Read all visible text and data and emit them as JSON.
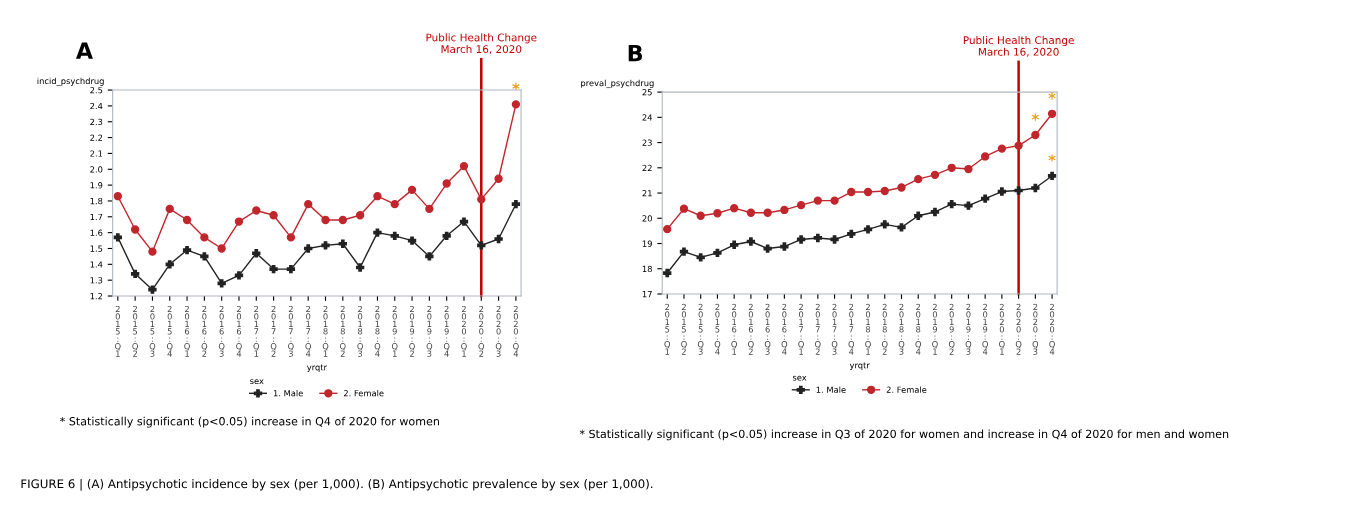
{
  "chart_data": [
    {
      "type": "line",
      "title": "A",
      "ylabel": "incid_psychdrug",
      "xlabel": "yrqtr",
      "legend_title": "sex",
      "legend": "bottom",
      "grid": false,
      "categories": [
        "2015:Q1",
        "2015:Q2",
        "2015:Q3",
        "2015:Q4",
        "2016:Q1",
        "2016:Q2",
        "2016:Q3",
        "2016:Q4",
        "2017:Q1",
        "2017:Q2",
        "2017:Q3",
        "2017:Q4",
        "2018:Q1",
        "2018:Q2",
        "2018:Q3",
        "2018:Q4",
        "2019:Q1",
        "2019:Q2",
        "2019:Q3",
        "2019:Q4",
        "2020:Q1",
        "2020:Q2",
        "2020:Q3",
        "2020:Q4"
      ],
      "ylim": [
        1.2,
        2.5
      ],
      "yticks": [
        {
          "value": 1.2,
          "label": "1.2"
        },
        {
          "value": 1.3,
          "label": "1.3"
        },
        {
          "value": 1.4,
          "label": "1.4"
        },
        {
          "value": 1.5,
          "label": "1.5"
        },
        {
          "value": 1.6,
          "label": "1.6"
        },
        {
          "value": 1.7,
          "label": "1.7"
        },
        {
          "value": 1.8,
          "label": "1.8"
        },
        {
          "value": 1.9,
          "label": "1.9"
        },
        {
          "value": 2.0,
          "label": "2.0"
        },
        {
          "value": 2.1,
          "label": "2.1"
        },
        {
          "value": 2.2,
          "label": "2.2"
        },
        {
          "value": 2.3,
          "label": "2.3"
        },
        {
          "value": 2.4,
          "label": "2.4"
        },
        {
          "value": 2.5,
          "label": "2.5"
        }
      ],
      "series": [
        {
          "name": "1. Male",
          "color": "#222222",
          "marker": "cross",
          "values": [
            1.57,
            1.34,
            1.24,
            1.4,
            1.49,
            1.45,
            1.28,
            1.33,
            1.47,
            1.37,
            1.37,
            1.5,
            1.52,
            1.53,
            1.38,
            1.6,
            1.58,
            1.55,
            1.45,
            1.58,
            1.67,
            1.52,
            1.56,
            1.78
          ]
        },
        {
          "name": "2. Female",
          "color": "#c0262c",
          "marker": "circle",
          "values": [
            1.83,
            1.62,
            1.48,
            1.75,
            1.68,
            1.57,
            1.5,
            1.67,
            1.74,
            1.71,
            1.57,
            1.78,
            1.68,
            1.68,
            1.71,
            1.83,
            1.78,
            1.87,
            1.75,
            1.91,
            2.02,
            1.81,
            1.94,
            2.41
          ]
        }
      ],
      "ref_lines": [
        {
          "axis": "x",
          "value": "2020:Q2",
          "label": "Public Health Change\nMarch 16, 2020",
          "color": "#c00000"
        }
      ],
      "annotations": [
        {
          "text": "*",
          "x": "2020:Q4",
          "y": 2.41
        },
        "* Statistically significant (p<0.05) increase in Q4 of 2020 for women"
      ]
    },
    {
      "type": "line",
      "title": "B",
      "ylabel": "preval_psychdrug",
      "xlabel": "yrqtr",
      "legend_title": "sex",
      "legend": "bottom",
      "grid": false,
      "categories": [
        "2015:Q1",
        "2015:Q2",
        "2015:Q3",
        "2015:Q4",
        "2016:Q1",
        "2016:Q2",
        "2016:Q3",
        "2016:Q4",
        "2017:Q1",
        "2017:Q2",
        "2017:Q3",
        "2017:Q4",
        "2018:Q1",
        "2018:Q2",
        "2018:Q3",
        "2018:Q4",
        "2019:Q1",
        "2019:Q2",
        "2019:Q3",
        "2019:Q4",
        "2020:Q1",
        "2020:Q2",
        "2020:Q3",
        "2020:Q4"
      ],
      "ylim": [
        17,
        25
      ],
      "yticks": [
        17,
        18,
        19,
        20,
        21,
        22,
        23,
        24,
        25
      ],
      "series": [
        {
          "name": "1. Male",
          "color": "#222222",
          "marker": "cross",
          "values": [
            17.83,
            18.68,
            18.45,
            18.63,
            18.95,
            19.08,
            18.8,
            18.88,
            19.16,
            19.22,
            19.16,
            19.38,
            19.56,
            19.76,
            19.64,
            20.1,
            20.25,
            20.56,
            20.5,
            20.78,
            21.06,
            21.1,
            21.2,
            21.68
          ]
        },
        {
          "name": "2. Female",
          "color": "#c0262c",
          "marker": "circle",
          "values": [
            19.57,
            20.38,
            20.1,
            20.2,
            20.4,
            20.22,
            20.22,
            20.33,
            20.52,
            20.7,
            20.7,
            21.04,
            21.04,
            21.08,
            21.22,
            21.55,
            21.72,
            22.0,
            21.95,
            22.45,
            22.76,
            22.88,
            23.3,
            24.14
          ]
        }
      ],
      "ref_lines": [
        {
          "axis": "x",
          "value": "2020:Q2",
          "label": "Public Health Change\nMarch 16, 2020",
          "color": "#c00000"
        }
      ],
      "annotations": [
        {
          "text": "*",
          "x": "2020:Q3",
          "y": 23.3
        },
        {
          "text": "*",
          "x": "2020:Q4",
          "y": 24.14
        },
        {
          "text": "*",
          "x": "2020:Q4",
          "y": 21.68
        },
        "* Statistically significant (p<0.05) increase in Q3 of 2020 for women and increase in Q4 of 2020 for men and women",
        "FIGURE 6 | (A) Antipsychotic incidence by sex (per 1,000). (B) Antipsychotic prevalence by sex (per 1,000)."
      ]
    }
  ]
}
